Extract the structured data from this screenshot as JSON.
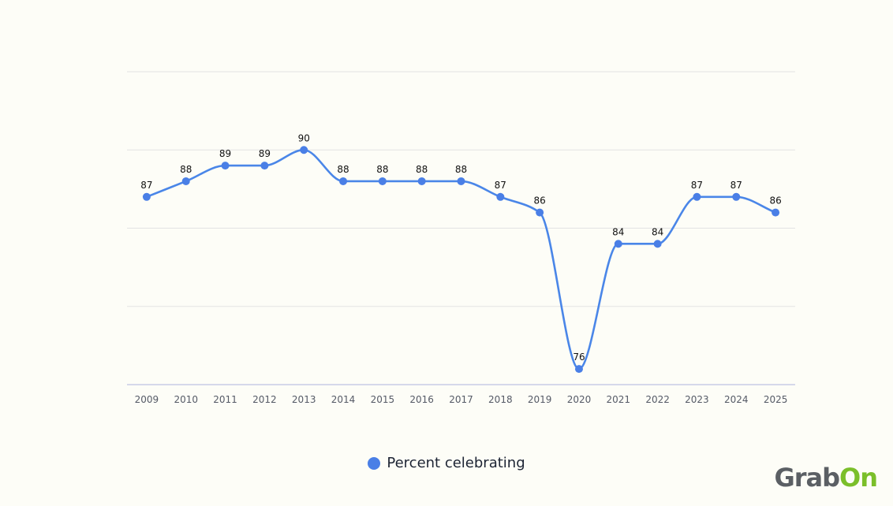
{
  "chart_data": {
    "type": "line",
    "categories": [
      "2009",
      "2010",
      "2011",
      "2012",
      "2013",
      "2014",
      "2015",
      "2016",
      "2017",
      "2018",
      "2019",
      "2020",
      "2021",
      "2022",
      "2023",
      "2024",
      "2025"
    ],
    "series": [
      {
        "name": "Percent celebrating",
        "values": [
          87,
          88,
          89,
          89,
          90,
          88,
          88,
          88,
          88,
          87,
          86,
          76,
          84,
          84,
          87,
          87,
          86
        ],
        "color": "#4a86e8",
        "dot_color": "#4a7fe6"
      }
    ],
    "ylim": [
      75,
      95
    ],
    "y_gridlines": [
      75,
      80,
      85,
      90,
      95
    ],
    "grid": true,
    "smooth": true,
    "data_labels": true,
    "y_tick_labels": false,
    "legend_position": "bottom"
  },
  "brand": {
    "part_a": "Grab",
    "part_b": "On"
  }
}
